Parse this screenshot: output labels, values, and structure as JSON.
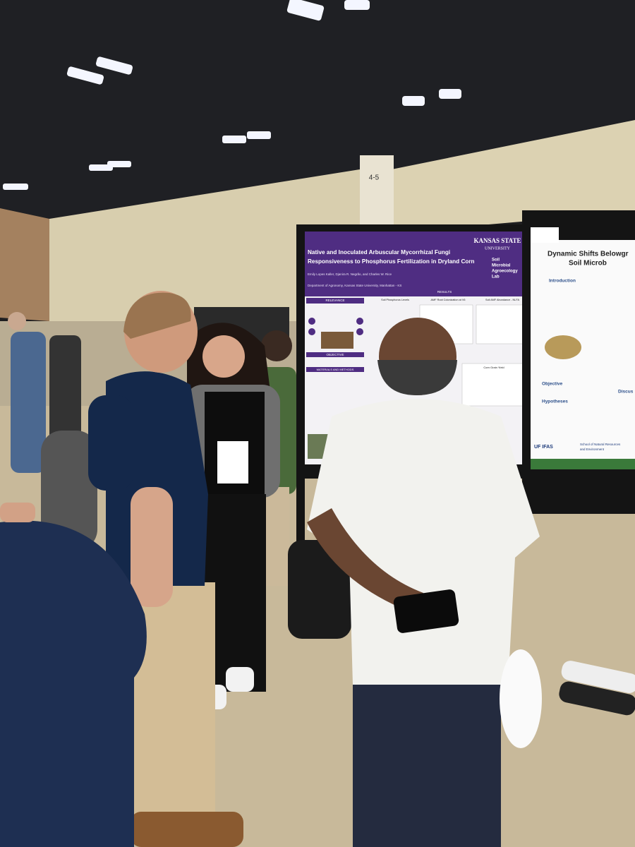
{
  "pillar_sign": "4-5",
  "left_poster": {
    "institution": [
      "KANSAS STATE",
      "UNIVERSITY"
    ],
    "title": [
      "Native and Inoculated Arbuscular Mycorrhizal Fungi",
      "Responsiveness to Phosphorus Fertilization in Dryland Corn"
    ],
    "authors": "Emily Lopes Kaller, Djanira R. Negrão, and Charles W. Rice",
    "affiliation": "Department of Agronomy, Kansas State University, Manhattan - KS",
    "lab": [
      "Soil",
      "Microbial",
      "Agroecology",
      "Lab"
    ],
    "sections": [
      "RELEVANCE",
      "RESULTS",
      "OBJECTIVE",
      "MATERIALS AND METHODS"
    ],
    "figures": [
      "Soil Phosphorus Levels",
      "AMF Root Colonization at V6",
      "Soil AMF Abundance - NLFA",
      "Corn Grain Yield"
    ]
  },
  "right_poster": {
    "title": [
      "Dynamic Shifts Belowgr",
      "Soil Microb"
    ],
    "sections": [
      "Introduction",
      "Objective",
      "Hypotheses",
      "Discus"
    ],
    "footer": [
      "UF IFAS",
      "School of Natural Resources",
      "and Environment"
    ]
  }
}
